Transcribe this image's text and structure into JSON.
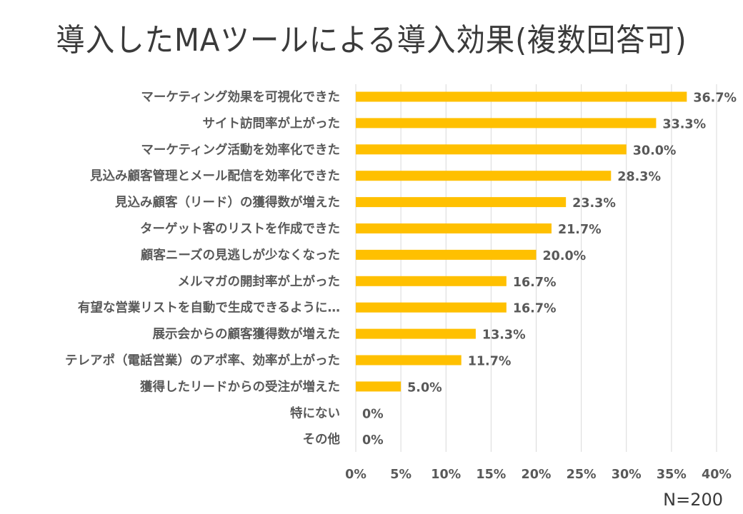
{
  "chart_data": {
    "type": "bar",
    "orientation": "horizontal",
    "title": "導入したMAツールによる導入効果(複数回答可)",
    "xlabel": "",
    "ylabel": "",
    "xlim": [
      0,
      40
    ],
    "x_ticks": [
      "0%",
      "5%",
      "10%",
      "15%",
      "20%",
      "25%",
      "30%",
      "35%",
      "40%"
    ],
    "x_tick_values": [
      0,
      5,
      10,
      15,
      20,
      25,
      30,
      35,
      40
    ],
    "grid": true,
    "bar_color": "#ffc000",
    "categories": [
      "マーケティング効果を可視化できた",
      "サイト訪問率が上がった",
      "マーケティング活動を効率化できた",
      "見込み顧客管理とメール配信を効率化できた",
      "見込み顧客（リード）の獲得数が増えた",
      "ターゲット客のリストを作成できた",
      "顧客ニーズの見逃しが少なくなった",
      "メルマガの開封率が上がった",
      "有望な営業リストを自動で生成できるように…",
      "展示会からの顧客獲得数が増えた",
      "テレアポ（電話営業）のアポ率、効率が上がった",
      "獲得したリードからの受注が増えた",
      "特にない",
      "その他"
    ],
    "values": [
      36.7,
      33.3,
      30.0,
      28.3,
      23.3,
      21.7,
      20.0,
      16.7,
      16.7,
      13.3,
      11.7,
      5.0,
      0,
      0
    ],
    "data_labels": [
      "36.7%",
      "33.3%",
      "30.0%",
      "28.3%",
      "23.3%",
      "21.7%",
      "20.0%",
      "16.7%",
      "16.7%",
      "13.3%",
      "11.7%",
      "5.0%",
      "0%",
      "0%"
    ],
    "legend": "none",
    "annotation": "N=200"
  }
}
